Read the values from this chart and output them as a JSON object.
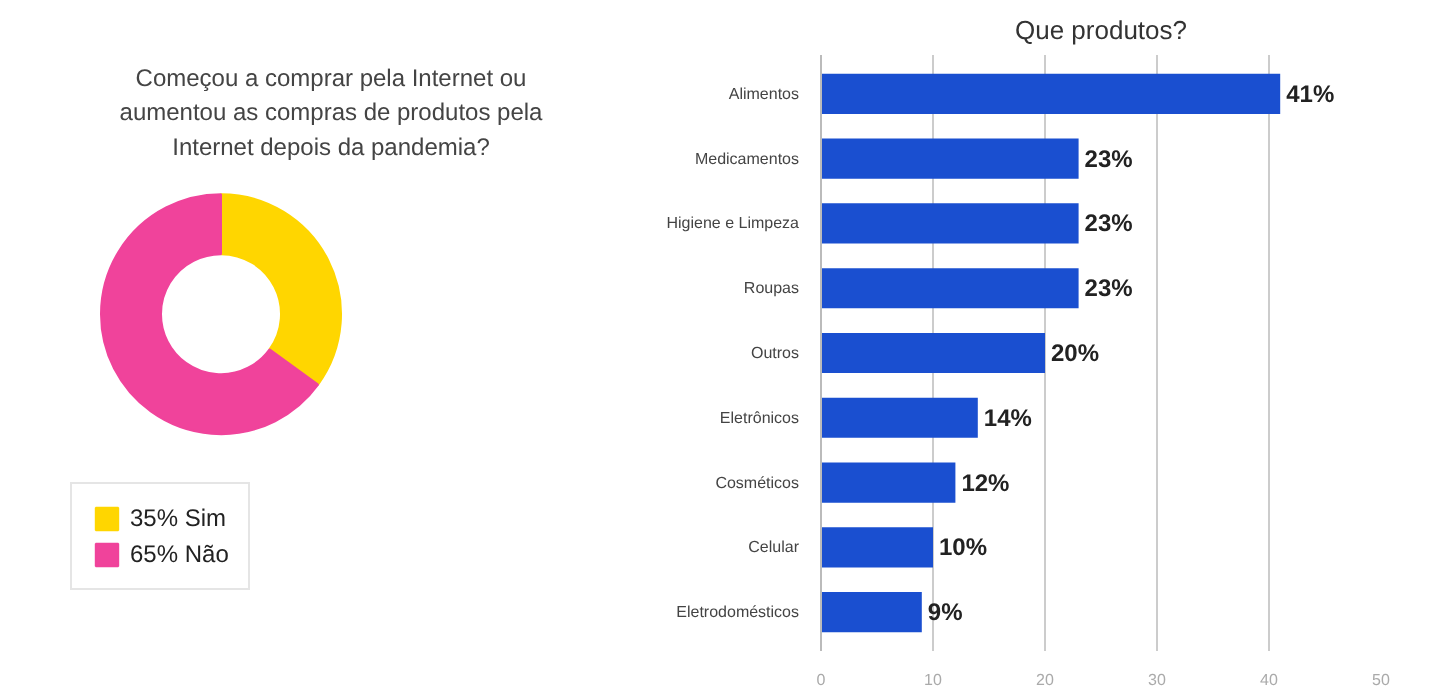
{
  "chart_data": [
    {
      "type": "donut",
      "title": "Começou a comprar pela Internet ou aumentou as compras de produtos pela Internet depois da pandemia?",
      "categories": [
        "Sim",
        "Não"
      ],
      "values": [
        35,
        65
      ],
      "colors": [
        "#ffd600",
        "#f0439b"
      ],
      "value_labels": [
        "35%",
        "65%"
      ],
      "legend": "bottom left"
    },
    {
      "type": "bar",
      "orientation": "horizontal",
      "title": "Que produtos?",
      "categories": [
        "Alimentos",
        "Medicamentos",
        "Higiene e Limpeza",
        "Roupas",
        "Outros",
        "Eletrônicos",
        "Cosméticos",
        "Celular",
        "Eletrodomésticos"
      ],
      "values": [
        41,
        23,
        23,
        23,
        20,
        14,
        12,
        10,
        9
      ],
      "color": "#1a4fd0",
      "value_labels": [
        "41%",
        "23%",
        "23%",
        "23%",
        "20%",
        "14%",
        "12%",
        "10%",
        "9%"
      ],
      "xlim": [
        0,
        50
      ],
      "xticks": [
        0,
        10,
        20,
        30,
        40,
        50
      ],
      "grid": "x"
    }
  ]
}
